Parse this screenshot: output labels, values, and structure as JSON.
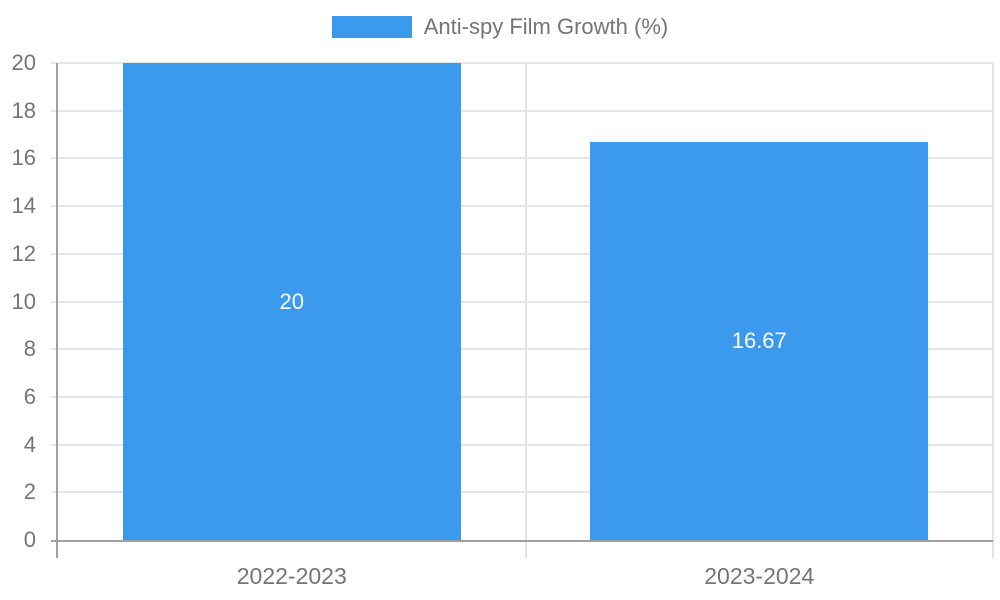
{
  "legend": {
    "label": "Anti-spy Film Growth (%)",
    "swatch_color": "#3b99ee"
  },
  "chart_data": {
    "type": "bar",
    "categories": [
      "2022-2023",
      "2023-2024"
    ],
    "values": [
      20,
      16.67
    ],
    "value_labels": [
      "20",
      "16.67"
    ],
    "series_name": "Anti-spy Film Growth (%)",
    "title": "",
    "xlabel": "",
    "ylabel": "",
    "ylim": [
      0,
      20
    ],
    "ytick_step": 2,
    "ytick_labels": [
      "0",
      "2",
      "4",
      "6",
      "8",
      "10",
      "12",
      "14",
      "16",
      "18",
      "20"
    ],
    "grid": true,
    "legend_position": "top",
    "bar_color": "#3b99ee",
    "value_label_color": "#ffffff",
    "axis_color": "#a0a0a0",
    "gridline_color": "#e6e6e6",
    "tick_label_color": "#757575",
    "background_color": "#ffffff"
  }
}
